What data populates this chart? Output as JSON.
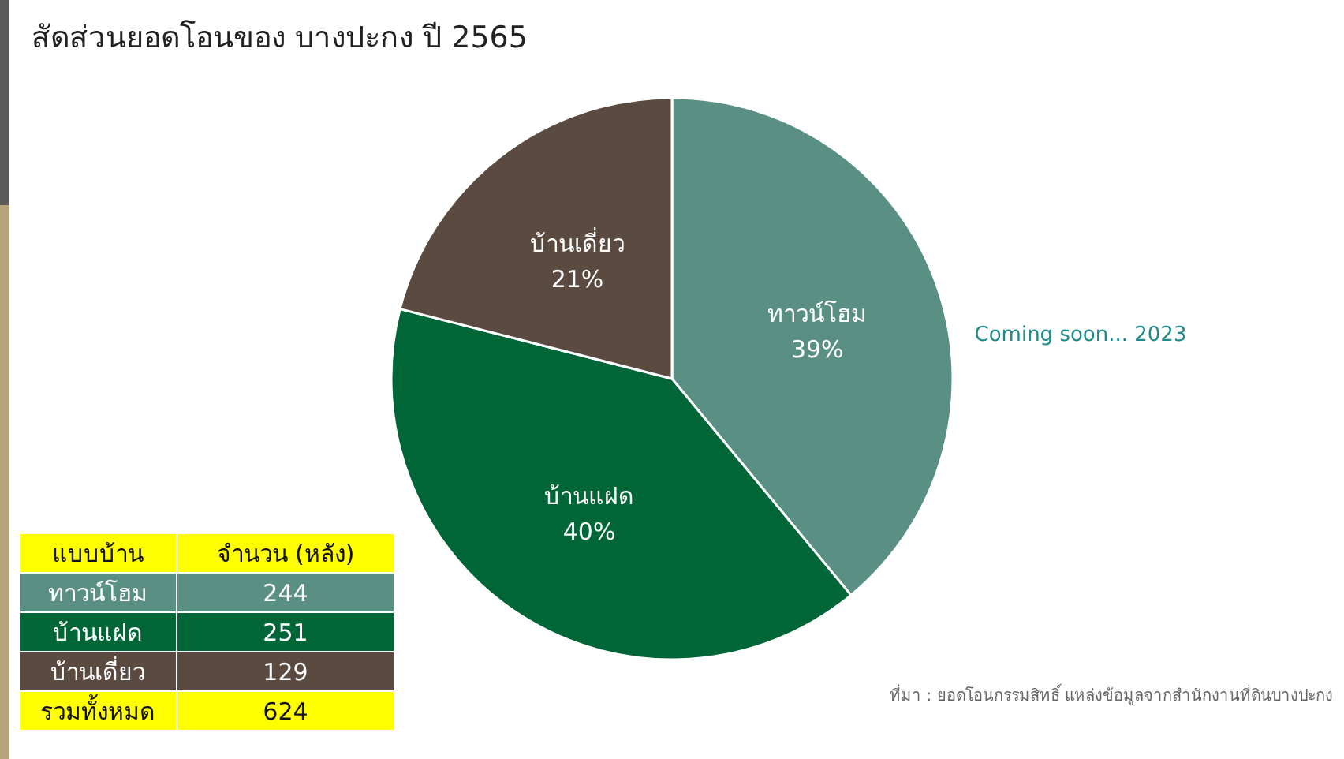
{
  "chart_data": {
    "type": "pie",
    "title": "สัดส่วนยอดโอนของ บางปะกง ปี 2565",
    "categories": [
      "ทาวน์โฮม",
      "บ้านแฝด",
      "บ้านเดี่ยว"
    ],
    "values": [
      39,
      40,
      21
    ],
    "colors": [
      "#5a8f84",
      "#006637",
      "#5a4a40"
    ],
    "value_labels": [
      "39%",
      "40%",
      "21%"
    ],
    "annotations": [
      "แบบบ้าน",
      "จำนวน (หลัง)",
      "244",
      "251",
      "129",
      "รวมทั้งหมด",
      "624",
      "ที่มา : ยอดโอนกรรมสิทธิ์ แหล่งข้อมูลจากสำนักงานที่ดินบางปะกง",
      "Coming soon... 2023"
    ]
  }
}
